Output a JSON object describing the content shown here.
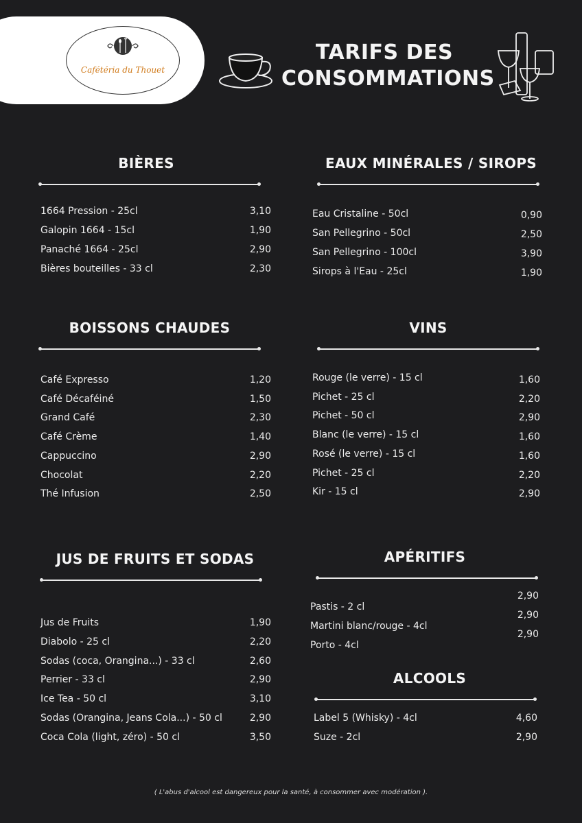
{
  "header": {
    "logo_text": "Cafétéria du Thouet",
    "title_line1": "TARIFS DES",
    "title_line2": "CONSOMMATIONS",
    "icons": [
      "coffee-cup-icon",
      "cocktail-glasses-icon"
    ]
  },
  "colors": {
    "background": "#1d1d1f",
    "text": "#f2f2f2",
    "logo_text": "#d07a1a"
  },
  "sections": [
    {
      "id": "bieres",
      "title": "BIÈRES",
      "items": [
        {
          "name": "1664 Pression - 25cl",
          "price": "3,10"
        },
        {
          "name": "Galopin 1664 - 15cl",
          "price": "1,90"
        },
        {
          "name": "Panaché 1664 - 25cl",
          "price": "2,90"
        },
        {
          "name": "Bières bouteilles - 33 cl",
          "price": "2,30"
        }
      ]
    },
    {
      "id": "eaux",
      "title": "EAUX MINÉRALES / SIROPS",
      "items": [
        {
          "name": "Eau Cristaline - 50cl",
          "price": "0,90"
        },
        {
          "name": "San Pellegrino - 50cl",
          "price": "2,50"
        },
        {
          "name": "San Pellegrino - 100cl",
          "price": "3,90"
        },
        {
          "name": "Sirops à l'Eau - 25cl",
          "price": "1,90"
        }
      ]
    },
    {
      "id": "chaudes",
      "title": "BOISSONS CHAUDES",
      "items": [
        {
          "name": "Café Expresso",
          "price": "1,20"
        },
        {
          "name": "Café Décaféiné",
          "price": "1,50"
        },
        {
          "name": "Grand Café",
          "price": "2,30"
        },
        {
          "name": "Café Crème",
          "price": "1,40"
        },
        {
          "name": "Cappuccino",
          "price": "2,90"
        },
        {
          "name": "Chocolat",
          "price": "2,20"
        },
        {
          "name": "Thé Infusion",
          "price": "2,50"
        }
      ]
    },
    {
      "id": "vins",
      "title": "VINS",
      "items": [
        {
          "name": "Rouge (le verre) - 15 cl",
          "price": "1,60"
        },
        {
          "name": "Pichet - 25 cl",
          "price": "2,20"
        },
        {
          "name": "Pichet - 50 cl",
          "price": "2,90"
        },
        {
          "name": "Blanc (le verre) - 15 cl",
          "price": "1,60"
        },
        {
          "name": "Rosé (le verre) - 15 cl",
          "price": "1,60"
        },
        {
          "name": "Pichet - 25 cl",
          "price": "2,20"
        },
        {
          "name": "Kir - 15 cl",
          "price": "2,90"
        }
      ]
    },
    {
      "id": "jus",
      "title": "JUS DE FRUITS ET SODAS",
      "items": [
        {
          "name": "Jus de Fruits",
          "price": "1,90"
        },
        {
          "name": "Diabolo - 25 cl",
          "price": "2,20"
        },
        {
          "name": "Sodas (coca, Orangina...) - 33 cl",
          "price": "2,60"
        },
        {
          "name": "Perrier - 33 cl",
          "price": "2,90"
        },
        {
          "name": "Ice Tea - 50 cl",
          "price": "3,10"
        },
        {
          "name": "Sodas (Orangina, Jeans Cola...) - 50 cl",
          "price": "2,90"
        },
        {
          "name": "Coca Cola (light, zéro) - 50 cl",
          "price": "3,50"
        }
      ]
    },
    {
      "id": "aperitifs",
      "title": "APÉRITIFS",
      "items": [
        {
          "name": "Pastis - 2 cl",
          "price": "2,90"
        },
        {
          "name": "Martini blanc/rouge - 4cl",
          "price": "2,90"
        },
        {
          "name": "Porto - 4cl",
          "price": "2,90"
        }
      ]
    },
    {
      "id": "alcools",
      "title": "ALCOOLS",
      "items": [
        {
          "name": "Label 5 (Whisky) - 4cl",
          "price": "4,60"
        },
        {
          "name": "Suze - 2cl",
          "price": "2,90"
        }
      ]
    }
  ],
  "footer": "( L'abus d'alcool est dangereux pour la santé, à consommer avec modération )."
}
